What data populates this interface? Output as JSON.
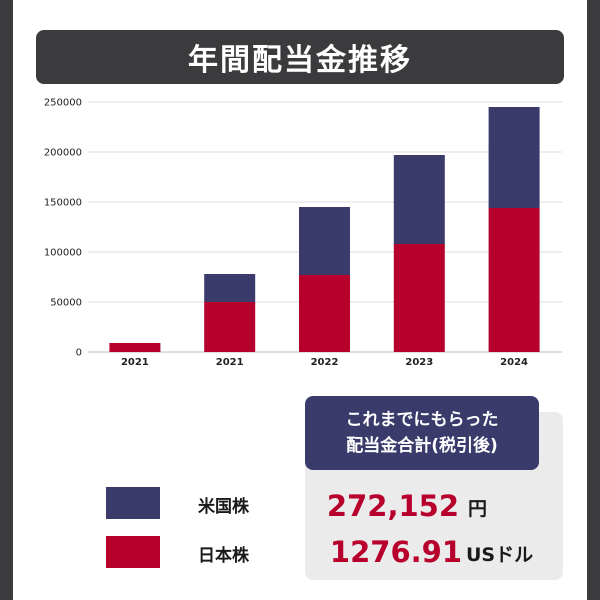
{
  "title": "年間配当金推移",
  "chart_data": {
    "type": "bar",
    "stacked": true,
    "categories": [
      "2021",
      "2021",
      "2022",
      "2023",
      "2024"
    ],
    "series": [
      {
        "name": "日本株",
        "color": "#b8002d",
        "values": [
          9000,
          50000,
          77000,
          108000,
          144000
        ]
      },
      {
        "name": "米国株",
        "color": "#3a3b6b",
        "values": [
          0,
          28000,
          68000,
          89000,
          101000
        ]
      }
    ],
    "y_ticks": [
      "0",
      "50000",
      "100000",
      "150000",
      "200000",
      "250000"
    ],
    "ylim": [
      0,
      250000
    ],
    "grid": true
  },
  "legend": {
    "us_label": "米国株",
    "jp_label": "日本株"
  },
  "summary": {
    "line1": "これまでにもらった",
    "line2": "配当金合計(税引後)",
    "yen_amount": "272,152",
    "yen_unit": "円",
    "usd_amount": "1276.91",
    "usd_unit": "USドル"
  }
}
